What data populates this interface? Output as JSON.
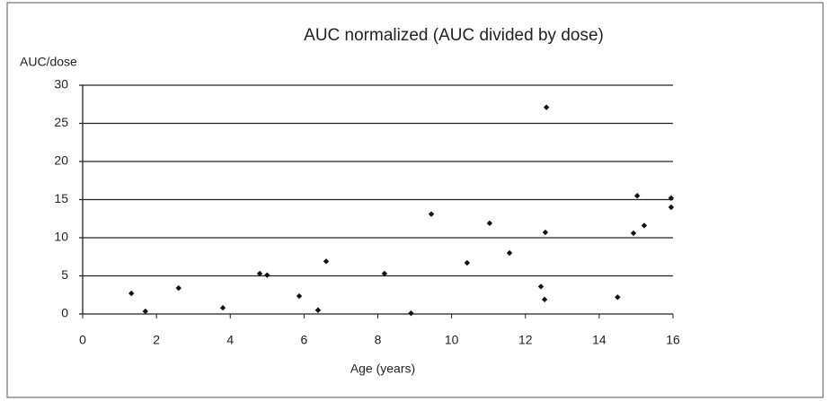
{
  "chart_data": {
    "type": "scatter",
    "title": "AUC normalized (AUC divided by dose)",
    "y_label": "AUC/dose",
    "x_label": "Age (years)",
    "x": [
      1.32,
      1.7,
      2.6,
      3.8,
      4.8,
      5.0,
      5.87,
      6.38,
      6.6,
      8.18,
      8.9,
      9.45,
      10.42,
      11.03,
      11.57,
      12.42,
      12.52,
      12.54,
      12.57,
      14.5,
      14.93,
      15.03,
      15.22,
      15.95,
      15.95
    ],
    "values": [
      2.7,
      0.35,
      3.4,
      0.8,
      5.3,
      5.1,
      2.35,
      0.5,
      6.9,
      5.3,
      0.1,
      13.1,
      6.7,
      11.9,
      8.0,
      3.6,
      1.9,
      10.7,
      27.1,
      2.2,
      10.6,
      15.5,
      11.6,
      15.2,
      14.0
    ],
    "color": "#111111",
    "xlim": [
      0,
      16
    ],
    "xticks": [
      0,
      2,
      4,
      6,
      8,
      10,
      12,
      14,
      16
    ],
    "ylim": [
      0,
      30
    ],
    "yticks": [
      0,
      5,
      10,
      15,
      20,
      25,
      30
    ],
    "grid": true
  }
}
